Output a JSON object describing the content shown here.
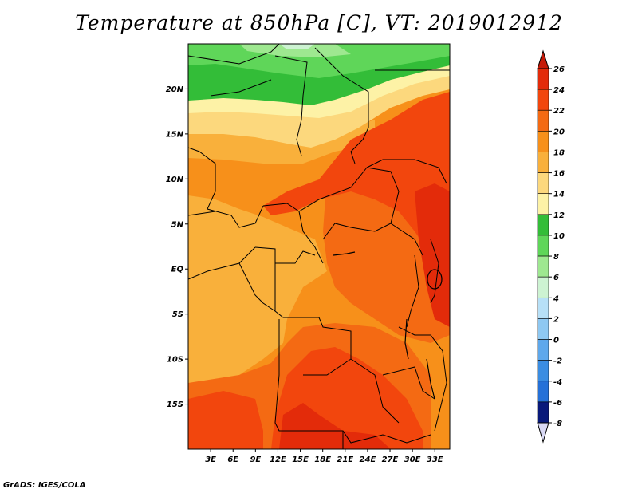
{
  "title": "Temperature at 850hPa [C], VT: 2019012912",
  "credit": "GrADS: IGES/COLA",
  "map": {
    "lat_range": [
      -20,
      25
    ],
    "lon_range": [
      0,
      35
    ],
    "lat_ticks": [
      {
        "value": 20,
        "label": "20N"
      },
      {
        "value": 15,
        "label": "15N"
      },
      {
        "value": 10,
        "label": "10N"
      },
      {
        "value": 5,
        "label": "5N"
      },
      {
        "value": 0,
        "label": "EQ"
      },
      {
        "value": -5,
        "label": "5S"
      },
      {
        "value": -10,
        "label": "10S"
      },
      {
        "value": -15,
        "label": "15S"
      }
    ],
    "lon_ticks": [
      {
        "value": 3,
        "label": "3E"
      },
      {
        "value": 6,
        "label": "6E"
      },
      {
        "value": 9,
        "label": "9E"
      },
      {
        "value": 12,
        "label": "12E"
      },
      {
        "value": 15,
        "label": "15E"
      },
      {
        "value": 18,
        "label": "18E"
      },
      {
        "value": 21,
        "label": "21E"
      },
      {
        "value": 24,
        "label": "24E"
      },
      {
        "value": 27,
        "label": "27E"
      },
      {
        "value": 30,
        "label": "30E"
      },
      {
        "value": 33,
        "label": "33E"
      }
    ]
  },
  "colorbar": {
    "levels": [
      {
        "label": "26",
        "color": "#e32b0a"
      },
      {
        "label": "24",
        "color": "#f2460d"
      },
      {
        "label": "22",
        "color": "#f46a13"
      },
      {
        "label": "20",
        "color": "#f7901a"
      },
      {
        "label": "18",
        "color": "#f9b03b"
      },
      {
        "label": "16",
        "color": "#fcd87d"
      },
      {
        "label": "14",
        "color": "#fdf2a6"
      },
      {
        "label": "12",
        "color": "#33bd38"
      },
      {
        "label": "10",
        "color": "#5fd659"
      },
      {
        "label": "8",
        "color": "#9ee890"
      },
      {
        "label": "6",
        "color": "#cdf3d2"
      },
      {
        "label": "4",
        "color": "#b7e0f7"
      },
      {
        "label": "2",
        "color": "#8ec8f2"
      },
      {
        "label": "0",
        "color": "#5ea8ec"
      },
      {
        "label": "-2",
        "color": "#3a8de2"
      },
      {
        "label": "-4",
        "color": "#2571d8"
      },
      {
        "label": "-6",
        "color": "#1653c2"
      },
      {
        "label": "-8",
        "color": "#0b36a6"
      }
    ],
    "top_arrow_color": "#c51a08",
    "bottom_arrow_color": "#d9d9f5",
    "bottom_band_color": "#08197a"
  },
  "fill_colors": {
    "t26": "#e32b0a",
    "t24": "#f2460d",
    "t22": "#f46a13",
    "t20": "#f7901a",
    "t18": "#f9b03b",
    "t16": "#fcd87d",
    "t14": "#fdf2a6",
    "t12": "#33bd38",
    "t10": "#5fd659",
    "t8": "#9ee890",
    "t6": "#cdf3d2"
  }
}
